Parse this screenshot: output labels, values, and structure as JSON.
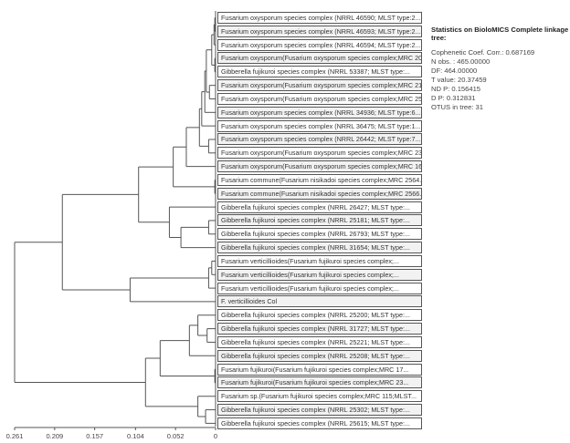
{
  "leaves": [
    "Fusarium oxysporum species complex (NRRL 46590; MLST type:2...",
    "Fusarium oxysporum species complex (NRRL 46593; MLST type:2...",
    "Fusarium oxysporum species complex (NRRL 46594; MLST type:2...",
    "Fusarium oxysporum(Fusarium oxysporum species complex;MRC 20...",
    "Gibberella fujikuroi species complex (NRRL 53387; MLST type:...",
    "Fusarium oxysporum(Fusarium oxysporum species complex;MRC 21...",
    "Fusarium oxysporum(Fusarium oxysporum species complex;MRC 25...",
    "Fusarium oxysporum species complex (NRRL 34936; MLST type:6...",
    "Fusarium oxysporum species complex (NRRL 36475; MLST type:1...",
    "Fusarium oxysporum species complex (NRRL 26442; MLST type:7...",
    "Fusarium oxysporum(Fusarium oxysporum species complex;MRC 23...",
    "Fusarium oxysporum(Fusarium oxysporum species complex;MRC 16...",
    "Fusarium commune(Fusarium nisikadoi species complex;MRC 2564...",
    "Fusarium commune(Fusarium nisikadoi species complex;MRC 2566...",
    "Gibberella fujikuroi species complex (NRRL 26427; MLST type:...",
    "Gibberella fujikuroi species complex (NRRL 25181; MLST type:...",
    "Gibberella fujikuroi species complex (NRRL 26793; MLST type:...",
    "Gibberella fujikuroi species complex (NRRL 31654; MLST type:...",
    "Fusarium verticillioides(Fusarium fujikuroi species complex;...",
    "Fusarium verticillioides(Fusarium fujikuroi species complex;...",
    "Fusarium verticillioides(Fusarium fujikuroi species complex;...",
    "F. verticillioides Col",
    "Gibberella fujikuroi species complex (NRRL 25200; MLST type:...",
    "Gibberella fujikuroi species complex (NRRL 31727; MLST type:...",
    "Gibberella fujikuroi species complex (NRRL 25221; MLST type:...",
    "Gibberella fujikuroi species complex (NRRL 25208; MLST type:...",
    "Fusarium fujikuroi(Fusarium fujikuroi species complex;MRC 17...",
    "Fusarium fujikuroi(Fusarium fujikuroi species complex;MRC 23...",
    "Fusarium sp.(Fusarium fujikuroi species complex;MRC 115;MLST...",
    "Gibberella fujikuroi species complex (NRRL 25302; MLST type:...",
    "Gibberella fujikuroi species complex (NRRL 25615; MLST type:..."
  ],
  "tree": {
    "h": 0.261,
    "c": [
      {
        "h": 0.199,
        "c": [
          {
            "h": 0.1,
            "c": [
              {
                "h": 0.055,
                "c": [
                  {
                    "h": 0.038,
                    "c": [
                      {
                        "h": 0.021,
                        "c": [
                          {
                            "h": 0.018,
                            "c": [
                              {
                                "h": 0.014,
                                "c": [
                                  {
                                    "h": 0.012,
                                    "c": [
                                      {
                                        "h": 0.005,
                                        "c": [
                                          {
                                            "h": 0.002,
                                            "c": [
                                              {
                                                "h": 0.001,
                                                "c": [
                                                  0,
                                                  1
                                                ]
                                              },
                                              2
                                            ]
                                          },
                                          {
                                            "h": 0.001,
                                            "c": [
                                              3,
                                              4
                                            ]
                                          }
                                        ]
                                      },
                                      {
                                        "h": 0.008,
                                        "c": [
                                          5,
                                          6
                                        ]
                                      }
                                    ]
                                  },
                                  7
                                ]
                              },
                              8
                            ]
                          },
                          {
                            "h": 0.009,
                            "c": [
                              9,
                              10
                            ]
                          }
                        ]
                      },
                      11
                    ]
                  },
                  {
                    "h": 0.001,
                    "c": [
                      12,
                      13
                    ]
                  }
                ]
              },
              {
                "h": 0.06,
                "c": [
                  14,
                  {
                    "h": 0.045,
                    "c": [
                      {
                        "h": 0.009,
                        "c": [
                          15,
                          16
                        ]
                      },
                      17
                    ]
                  }
                ]
              }
            ]
          },
          {
            "h": 0.111,
            "c": [
              {
                "h": 0.009,
                "c": [
                  {
                    "h": 0.005,
                    "c": [
                      18,
                      19
                    ]
                  },
                  20
                ]
              },
              21
            ]
          }
        ]
      },
      {
        "h": 0.091,
        "c": [
          {
            "h": 0.072,
            "c": [
              {
                "h": 0.034,
                "c": [
                  {
                    "h": 0.023,
                    "c": [
                      22,
                      {
                        "h": 0.011,
                        "c": [
                          23,
                          24
                        ]
                      }
                    ]
                  },
                  25
                ]
              },
              {
                "h": 0.001,
                "c": [
                  26,
                  27
                ]
              }
            ]
          },
          {
            "h": 0.023,
            "c": [
              28,
              {
                "h": 0.013,
                "c": [
                  29,
                  30
                ]
              }
            ]
          }
        ]
      }
    ]
  },
  "axis": {
    "ticks": [
      "0.261",
      "0.209",
      "0.157",
      "0.104",
      "0.052",
      "0"
    ],
    "values": [
      0.261,
      0.209,
      0.157,
      0.104,
      0.052,
      0
    ],
    "max": 0.261
  },
  "stats": {
    "title": "Statistics on BioloMICS Complete linkage tree:",
    "lines": [
      "Cophenetic Coef. Corr.: 0.687169",
      "N obs. : 465.00000",
      "DF: 464.00000",
      "T value: 20.37459",
      "ND P: 0.156415",
      "D P: 0.312831",
      "OTUS in tree: 31"
    ]
  },
  "colors": {
    "line": "#555555",
    "leaf_alt": "#f2f2f2"
  }
}
